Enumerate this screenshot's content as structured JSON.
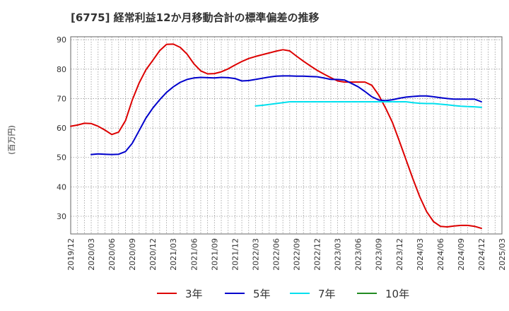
{
  "title": "[6775]  経常利益12か月移動合計の標準偏差の推移",
  "ylabel": "(百万円)",
  "chart_data": {
    "type": "line",
    "title": "[6775]  経常利益12か月移動合計の標準偏差の推移",
    "xlabel": "",
    "ylabel": "(百万円)",
    "ylim": [
      24,
      91
    ],
    "yticks": [
      30,
      40,
      50,
      60,
      70,
      80,
      90
    ],
    "xticks": [
      "2019/12",
      "2020/03",
      "2020/06",
      "2020/09",
      "2020/12",
      "2021/03",
      "2021/06",
      "2021/09",
      "2021/12",
      "2022/03",
      "2022/06",
      "2022/09",
      "2022/12",
      "2023/03",
      "2023/06",
      "2023/09",
      "2023/12",
      "2024/03",
      "2024/06",
      "2024/09",
      "2024/12",
      "2025/03"
    ],
    "grid": true,
    "legend_position": "bottom",
    "series": [
      {
        "name": "3年",
        "color": "#dd0000",
        "x": [
          "2019/12",
          "2020/01",
          "2020/02",
          "2020/03",
          "2020/04",
          "2020/05",
          "2020/06",
          "2020/07",
          "2020/08",
          "2020/09",
          "2020/10",
          "2020/11",
          "2020/12",
          "2021/01",
          "2021/02",
          "2021/03",
          "2021/04",
          "2021/05",
          "2021/06",
          "2021/07",
          "2021/08",
          "2021/09",
          "2021/10",
          "2021/11",
          "2021/12",
          "2022/01",
          "2022/02",
          "2022/03",
          "2022/04",
          "2022/05",
          "2022/06",
          "2022/07",
          "2022/08",
          "2022/09",
          "2022/10",
          "2022/11",
          "2022/12",
          "2023/01",
          "2023/02",
          "2023/03",
          "2023/04",
          "2023/05",
          "2023/06",
          "2023/07",
          "2023/08",
          "2023/09",
          "2023/10",
          "2023/11",
          "2023/12",
          "2024/01",
          "2024/02",
          "2024/03",
          "2024/04",
          "2024/05",
          "2024/06",
          "2024/07",
          "2024/08",
          "2024/09",
          "2024/10",
          "2024/11",
          "2024/12"
        ],
        "values": [
          60.6,
          61.0,
          61.6,
          61.5,
          60.6,
          59.3,
          57.8,
          58.6,
          62.5,
          69.5,
          75.3,
          79.8,
          83.0,
          86.3,
          88.4,
          88.5,
          87.4,
          85.1,
          81.8,
          79.4,
          78.4,
          78.5,
          79.1,
          80.1,
          81.4,
          82.6,
          83.6,
          84.3,
          84.9,
          85.5,
          86.1,
          86.6,
          86.2,
          84.4,
          82.7,
          81.1,
          79.6,
          78.3,
          77.1,
          76.0,
          75.6,
          75.6,
          75.6,
          75.6,
          74.5,
          71.2,
          66.8,
          61.9,
          55.6,
          49.2,
          42.7,
          36.6,
          31.6,
          28.2,
          26.6,
          26.4,
          26.7,
          26.9,
          26.9,
          26.6,
          25.9
        ]
      },
      {
        "name": "5年",
        "color": "#0000cc",
        "x": [
          "2020/03",
          "2020/04",
          "2020/05",
          "2020/06",
          "2020/07",
          "2020/08",
          "2020/09",
          "2020/10",
          "2020/11",
          "2020/12",
          "2021/01",
          "2021/02",
          "2021/03",
          "2021/04",
          "2021/05",
          "2021/06",
          "2021/07",
          "2021/08",
          "2021/09",
          "2021/10",
          "2021/11",
          "2021/12",
          "2022/01",
          "2022/02",
          "2022/03",
          "2022/04",
          "2022/05",
          "2022/06",
          "2022/07",
          "2022/08",
          "2022/09",
          "2022/10",
          "2022/11",
          "2022/12",
          "2023/01",
          "2023/02",
          "2023/03",
          "2023/04",
          "2023/05",
          "2023/06",
          "2023/07",
          "2023/08",
          "2023/09",
          "2023/10",
          "2023/11",
          "2023/12",
          "2024/01",
          "2024/02",
          "2024/03",
          "2024/04",
          "2024/05",
          "2024/06",
          "2024/07",
          "2024/08",
          "2024/09",
          "2024/10",
          "2024/11",
          "2024/12"
        ],
        "values": [
          51.0,
          51.2,
          51.1,
          51.0,
          51.1,
          52.0,
          54.8,
          59.1,
          63.4,
          66.8,
          69.6,
          72.1,
          74.0,
          75.5,
          76.5,
          77.0,
          77.2,
          77.1,
          77.0,
          77.2,
          77.1,
          76.8,
          76.0,
          76.1,
          76.5,
          76.9,
          77.3,
          77.6,
          77.7,
          77.7,
          77.6,
          77.6,
          77.5,
          77.4,
          77.0,
          76.5,
          76.5,
          76.3,
          75.2,
          74.0,
          72.4,
          70.6,
          69.5,
          69.3,
          69.6,
          70.1,
          70.5,
          70.7,
          70.9,
          70.9,
          70.6,
          70.3,
          70.0,
          69.8,
          69.8,
          69.8,
          69.8,
          68.9
        ]
      },
      {
        "name": "7年",
        "color": "#00e0ee",
        "x": [
          "2022/03",
          "2022/04",
          "2022/05",
          "2022/06",
          "2022/07",
          "2022/08",
          "2022/09",
          "2022/10",
          "2022/11",
          "2022/12",
          "2023/01",
          "2023/02",
          "2023/03",
          "2023/04",
          "2023/05",
          "2023/06",
          "2023/07",
          "2023/08",
          "2023/09",
          "2023/10",
          "2023/11",
          "2023/12",
          "2024/01",
          "2024/02",
          "2024/03",
          "2024/04",
          "2024/05",
          "2024/06",
          "2024/07",
          "2024/08",
          "2024/09",
          "2024/10",
          "2024/11",
          "2024/12"
        ],
        "values": [
          67.5,
          67.7,
          68.0,
          68.3,
          68.6,
          68.9,
          68.9,
          68.9,
          68.9,
          68.9,
          68.9,
          68.9,
          68.9,
          68.9,
          68.9,
          68.9,
          68.9,
          68.9,
          68.9,
          68.9,
          68.9,
          68.9,
          68.9,
          68.6,
          68.4,
          68.3,
          68.3,
          68.1,
          67.9,
          67.6,
          67.4,
          67.3,
          67.2,
          67.0
        ]
      },
      {
        "name": "10年",
        "color": "#228b22",
        "x": [],
        "values": []
      }
    ]
  }
}
